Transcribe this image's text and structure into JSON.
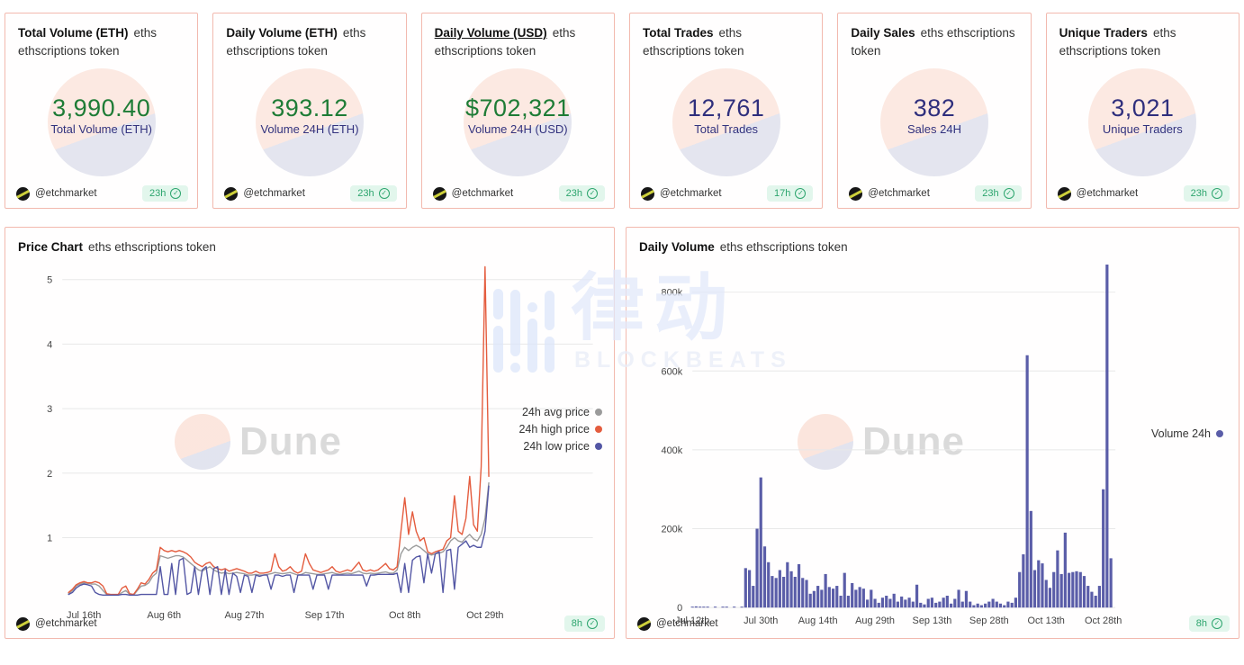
{
  "colors": {
    "card_border": "#f2b9ae",
    "value_green": "#1e7c36",
    "value_navy": "#2f2f7d",
    "label_navy": "#32327e",
    "badge_green": "#2da56e",
    "badge_bg": "#e2f6ec",
    "series_high_red": "#e45c3e",
    "series_low_blue": "#5356a4",
    "series_avg_gray": "#9b9b9b",
    "bar_indigo": "#5a5da8"
  },
  "stats": {
    "cards": [
      {
        "title": "Total Volume (ETH)",
        "subtitle": "eths ethscriptions token",
        "value": "3,990.40",
        "value_label": "Total Volume (ETH)",
        "accent": "green",
        "footer": {
          "handle": "@etchmarket",
          "time": "23h"
        }
      },
      {
        "title": "Daily Volume (ETH)",
        "subtitle": "eths ethscriptions token",
        "value": "393.12",
        "value_label": "Volume 24H (ETH)",
        "accent": "green",
        "footer": {
          "handle": "@etchmarket",
          "time": "23h"
        }
      },
      {
        "title": "Daily Volume (USD)",
        "subtitle": "eths ethscriptions token",
        "value": "$702,321",
        "value_label": "Volume 24H (USD)",
        "accent": "green",
        "footer": {
          "handle": "@etchmarket",
          "time": "23h"
        }
      },
      {
        "title": "Total Trades",
        "subtitle": "eths ethscriptions token",
        "value": "12,761",
        "value_label": "Total Trades",
        "accent": "navy",
        "footer": {
          "handle": "@etchmarket",
          "time": "17h"
        }
      },
      {
        "title": "Daily Sales",
        "subtitle": "eths ethscriptions token",
        "value": "382",
        "value_label": "Sales 24H",
        "accent": "navy",
        "footer": {
          "handle": "@etchmarket",
          "time": "23h"
        }
      },
      {
        "title": "Unique Traders",
        "subtitle": "eths ethscriptions token",
        "value": "3,021",
        "value_label": "Unique Traders",
        "accent": "navy",
        "footer": {
          "handle": "@etchmarket",
          "time": "23h"
        }
      }
    ]
  },
  "charts": {
    "price": {
      "title": "Price Chart",
      "subtitle": "eths ethscriptions token",
      "footer": {
        "handle": "@etchmarket",
        "time": "8h"
      }
    },
    "volume": {
      "title": "Daily Volume",
      "subtitle": "eths ethscriptions token",
      "footer": {
        "handle": "@etchmarket",
        "time": "8h"
      }
    }
  },
  "watermarks": {
    "blockbeats_chars": "律动",
    "blockbeats_name": "BLOCKBEATS",
    "dune": "Dune"
  },
  "chart_data": [
    {
      "type": "line",
      "title": "Price Chart",
      "subtitle": "eths ethscriptions token",
      "x_start_date": "Jul 12th",
      "n_points": 111,
      "x_ticks": {
        "positions": [
          4,
          25,
          46,
          67,
          88,
          109
        ],
        "labels": [
          "Jul 16th",
          "Aug 6th",
          "Aug 27th",
          "Sep 17th",
          "Oct 8th",
          "Oct 29th"
        ]
      },
      "y_ticks": [
        1,
        2,
        3,
        4,
        5
      ],
      "ylim": [
        0,
        5.25
      ],
      "grid": "horizontal",
      "legend_position": "right",
      "series": [
        {
          "name": "24h avg price",
          "color": "#9b9b9b",
          "values": [
            0.13,
            0.18,
            0.25,
            0.28,
            0.3,
            0.29,
            0.28,
            0.28,
            0.25,
            0.18,
            0.12,
            0.11,
            0.11,
            0.11,
            0.15,
            0.18,
            0.12,
            0.11,
            0.18,
            0.25,
            0.26,
            0.3,
            0.4,
            0.45,
            0.72,
            0.7,
            0.68,
            0.7,
            0.72,
            0.72,
            0.7,
            0.65,
            0.6,
            0.55,
            0.5,
            0.48,
            0.52,
            0.55,
            0.5,
            0.47,
            0.45,
            0.46,
            0.44,
            0.45,
            0.46,
            0.45,
            0.44,
            0.42,
            0.42,
            0.43,
            0.42,
            0.42,
            0.43,
            0.44,
            0.46,
            0.45,
            0.44,
            0.45,
            0.46,
            0.44,
            0.42,
            0.43,
            0.46,
            0.45,
            0.44,
            0.43,
            0.43,
            0.44,
            0.45,
            0.46,
            0.44,
            0.43,
            0.44,
            0.45,
            0.44,
            0.46,
            0.48,
            0.45,
            0.44,
            0.45,
            0.44,
            0.45,
            0.46,
            0.47,
            0.45,
            0.45,
            0.5,
            0.75,
            0.85,
            0.8,
            0.85,
            0.88,
            0.85,
            0.8,
            0.75,
            0.73,
            0.75,
            0.76,
            0.78,
            0.85,
            0.95,
            1.0,
            0.95,
            0.93,
            1.0,
            1.05,
            0.98,
            0.95,
            1.05,
            1.3,
            1.85
          ]
        },
        {
          "name": "24h high price",
          "color": "#e45c3e",
          "values": [
            0.15,
            0.2,
            0.27,
            0.3,
            0.32,
            0.3,
            0.3,
            0.32,
            0.3,
            0.25,
            0.13,
            0.12,
            0.12,
            0.12,
            0.22,
            0.25,
            0.13,
            0.12,
            0.2,
            0.3,
            0.28,
            0.35,
            0.45,
            0.5,
            0.85,
            0.8,
            0.78,
            0.8,
            0.78,
            0.8,
            0.78,
            0.75,
            0.7,
            0.62,
            0.58,
            0.55,
            0.6,
            0.62,
            0.55,
            0.52,
            0.5,
            0.52,
            0.48,
            0.5,
            0.52,
            0.5,
            0.48,
            0.45,
            0.45,
            0.48,
            0.45,
            0.45,
            0.46,
            0.48,
            0.75,
            0.55,
            0.48,
            0.5,
            0.55,
            0.48,
            0.45,
            0.48,
            0.75,
            0.6,
            0.5,
            0.48,
            0.46,
            0.48,
            0.5,
            0.55,
            0.48,
            0.46,
            0.48,
            0.5,
            0.48,
            0.55,
            0.62,
            0.5,
            0.48,
            0.5,
            0.48,
            0.5,
            0.55,
            0.6,
            0.52,
            0.5,
            0.55,
            1.1,
            1.62,
            1.05,
            1.4,
            1.1,
            0.95,
            1.0,
            0.78,
            0.75,
            0.78,
            0.8,
            0.82,
            0.95,
            1.0,
            1.65,
            1.1,
            1.05,
            1.3,
            1.95,
            1.2,
            1.1,
            2.1,
            5.2,
            1.95
          ]
        },
        {
          "name": "24h low price",
          "color": "#5356a4",
          "values": [
            0.12,
            0.15,
            0.22,
            0.26,
            0.28,
            0.27,
            0.25,
            0.15,
            0.12,
            0.11,
            0.11,
            0.11,
            0.11,
            0.11,
            0.12,
            0.12,
            0.11,
            0.11,
            0.11,
            0.12,
            0.12,
            0.12,
            0.12,
            0.12,
            0.55,
            0.12,
            0.12,
            0.6,
            0.12,
            0.65,
            0.68,
            0.12,
            0.15,
            0.55,
            0.12,
            0.5,
            0.55,
            0.12,
            0.52,
            0.55,
            0.12,
            0.5,
            0.12,
            0.45,
            0.4,
            0.15,
            0.42,
            0.4,
            0.15,
            0.42,
            0.4,
            0.42,
            0.42,
            0.2,
            0.42,
            0.42,
            0.4,
            0.42,
            0.42,
            0.15,
            0.42,
            0.42,
            0.42,
            0.42,
            0.2,
            0.42,
            0.42,
            0.42,
            0.2,
            0.42,
            0.42,
            0.42,
            0.42,
            0.42,
            0.42,
            0.42,
            0.42,
            0.42,
            0.25,
            0.42,
            0.42,
            0.43,
            0.43,
            0.43,
            0.43,
            0.43,
            0.45,
            0.15,
            0.6,
            0.15,
            0.65,
            0.7,
            0.72,
            0.3,
            0.75,
            0.45,
            0.75,
            0.78,
            0.15,
            0.8,
            0.82,
            0.2,
            0.85,
            0.9,
            0.95,
            0.85,
            0.88,
            0.85,
            0.85,
            1.1,
            1.8
          ]
        }
      ]
    },
    {
      "type": "bar",
      "title": "Daily Volume",
      "subtitle": "eths ethscriptions token",
      "x_start_date": "Jul 12th",
      "n_points": 111,
      "x_ticks": {
        "positions": [
          0,
          18,
          33,
          48,
          63,
          78,
          93,
          108
        ],
        "labels": [
          "Jul 12th",
          "Jul 30th",
          "Aug 14th",
          "Aug 29th",
          "Sep 13th",
          "Sep 28th",
          "Oct 13th",
          "Oct 28th"
        ]
      },
      "y_ticks": [
        {
          "v": 0,
          "label": "0"
        },
        {
          "v": 200,
          "label": "200k"
        },
        {
          "v": 400,
          "label": "400k"
        },
        {
          "v": 600,
          "label": "600k"
        },
        {
          "v": 800,
          "label": "800k"
        }
      ],
      "ylim_thousands": [
        0,
        880
      ],
      "grid": "horizontal",
      "legend_position": "right",
      "series": [
        {
          "name": "Volume 24h",
          "color": "#5a5da8",
          "values_thousands": [
            2,
            3,
            1,
            1,
            1,
            0,
            1,
            0,
            1,
            1,
            0,
            1,
            0,
            1,
            100,
            95,
            55,
            200,
            330,
            155,
            115,
            80,
            75,
            95,
            78,
            115,
            92,
            78,
            110,
            75,
            70,
            35,
            42,
            55,
            45,
            85,
            52,
            48,
            55,
            30,
            88,
            30,
            62,
            45,
            52,
            48,
            20,
            45,
            22,
            12,
            25,
            30,
            22,
            35,
            15,
            28,
            20,
            25,
            15,
            58,
            12,
            8,
            22,
            25,
            12,
            15,
            25,
            30,
            10,
            22,
            45,
            15,
            42,
            15,
            6,
            10,
            6,
            10,
            15,
            22,
            15,
            10,
            6,
            15,
            12,
            25,
            90,
            135,
            640,
            245,
            95,
            120,
            112,
            70,
            50,
            90,
            145,
            85,
            190,
            88,
            90,
            92,
            90,
            80,
            55,
            40,
            30,
            55,
            300,
            870,
            125
          ]
        }
      ]
    }
  ]
}
